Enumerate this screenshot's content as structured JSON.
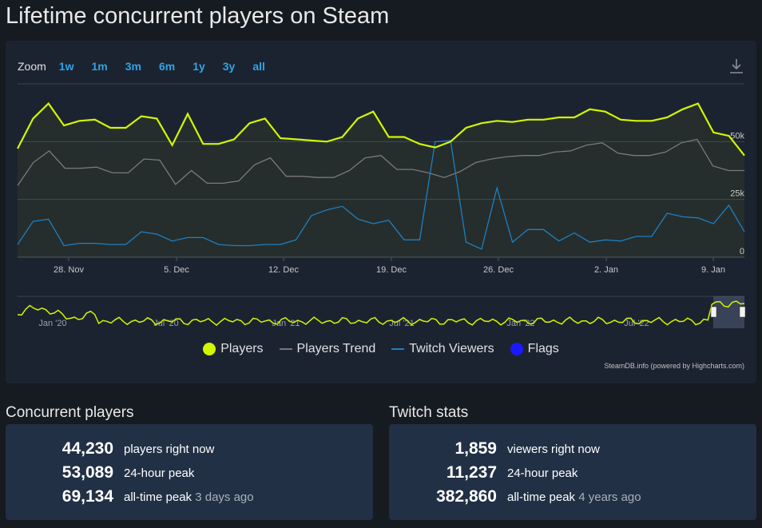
{
  "page": {
    "title": "Lifetime concurrent players on Steam"
  },
  "zoom": {
    "label": "Zoom",
    "options": [
      "1w",
      "1m",
      "3m",
      "6m",
      "1y",
      "3y",
      "all"
    ]
  },
  "chart_data": {
    "type": "line",
    "x_ticks": [
      "28. Nov",
      "5. Dec",
      "12. Dec",
      "19. Dec",
      "26. Dec",
      "2. Jan",
      "9. Jan"
    ],
    "y_ticks": [
      "0",
      "25k",
      "50k"
    ],
    "ylim": [
      0,
      75000
    ],
    "series": [
      {
        "name": "Players",
        "color": "#d2f600",
        "values": [
          47000,
          60000,
          66500,
          57000,
          59000,
          59500,
          56000,
          56000,
          61000,
          60000,
          48500,
          62000,
          49000,
          49000,
          51000,
          58000,
          60000,
          51500,
          51000,
          50500,
          50000,
          52000,
          60000,
          63000,
          52000,
          52000,
          49000,
          47500,
          50000,
          56000,
          58000,
          59000,
          58500,
          59500,
          59500,
          60500,
          60500,
          64000,
          63000,
          59500,
          59000,
          59000,
          60500,
          64000,
          66500,
          54000,
          52500,
          44000
        ]
      },
      {
        "name": "Players Trend",
        "color": "#7a7a7a",
        "values": [
          31000,
          41000,
          46000,
          38500,
          38500,
          39000,
          36500,
          36500,
          42500,
          42000,
          31500,
          37500,
          32000,
          32000,
          33000,
          40000,
          43000,
          35000,
          35000,
          34500,
          34500,
          37500,
          43000,
          44000,
          38000,
          38000,
          36500,
          34500,
          37000,
          41000,
          42500,
          43500,
          44000,
          44000,
          45500,
          46000,
          48500,
          49500,
          45000,
          44000,
          44000,
          45500,
          49500,
          51000,
          39500,
          37500,
          37500
        ]
      },
      {
        "name": "Twitch Viewers",
        "color": "#1f7fc0",
        "values": [
          5500,
          15500,
          16500,
          5000,
          6000,
          6000,
          5500,
          5500,
          11000,
          10000,
          7000,
          8500,
          8500,
          5500,
          5000,
          5000,
          5500,
          5500,
          7500,
          18000,
          20500,
          22000,
          16500,
          14500,
          16000,
          7500,
          7500,
          50000,
          50500,
          6500,
          3500,
          30000,
          6500,
          12000,
          12000,
          7000,
          10500,
          6500,
          7500,
          7000,
          9000,
          9000,
          19000,
          17500,
          17000,
          14500,
          22500,
          11000
        ]
      },
      {
        "name": "Flags",
        "color": "#1a1aff",
        "values": []
      }
    ],
    "navigator": {
      "ticks": [
        "Jan '20",
        "Jul '20",
        "Jan '21",
        "Jul '21",
        "Jan '22",
        "Jul '22"
      ]
    }
  },
  "credit": "SteamDB.info (powered by Highcharts.com)",
  "concurrent": {
    "title": "Concurrent players",
    "rows": [
      {
        "value": "44,230",
        "label": "players right now",
        "ago": ""
      },
      {
        "value": "53,089",
        "label": "24-hour peak",
        "ago": ""
      },
      {
        "value": "69,134",
        "label": "all-time peak",
        "ago": "3 days ago"
      }
    ]
  },
  "twitch": {
    "title": "Twitch stats",
    "rows": [
      {
        "value": "1,859",
        "label": "viewers right now",
        "ago": ""
      },
      {
        "value": "11,237",
        "label": "24-hour peak",
        "ago": ""
      },
      {
        "value": "382,860",
        "label": "all-time peak",
        "ago": "4 years ago"
      }
    ]
  }
}
